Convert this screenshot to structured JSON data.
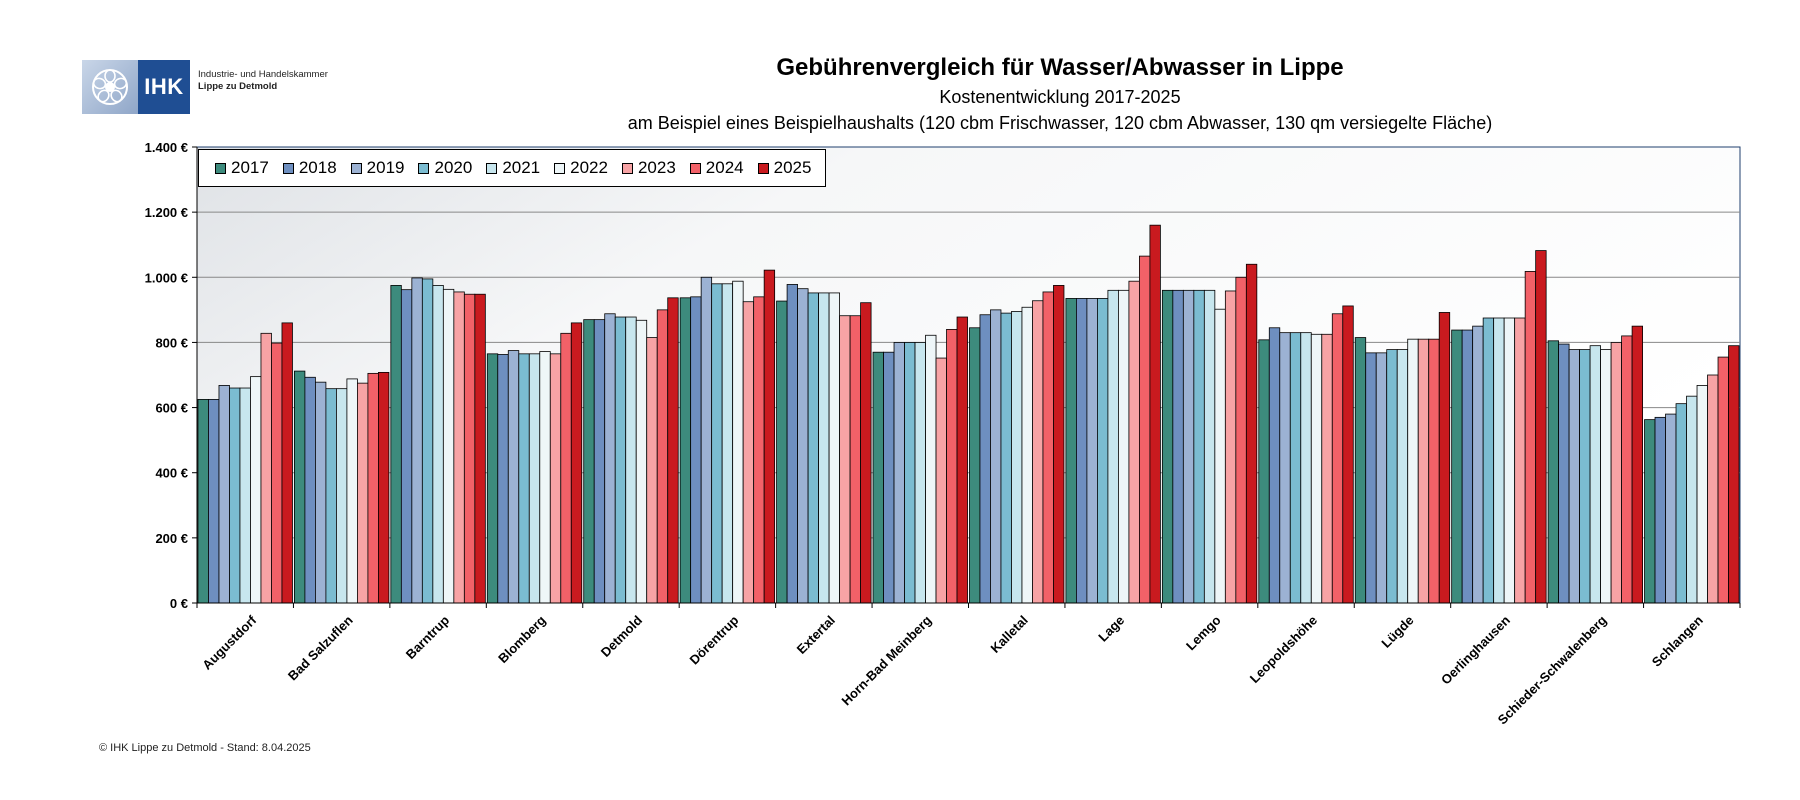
{
  "logo": {
    "ihk_text": "IHK",
    "line1": "Industrie- und Handelskammer",
    "line2": "Lippe zu Detmold"
  },
  "footer": "© IHK Lippe zu Detmold - Stand: 8.04.2025",
  "chart_data": {
    "type": "bar",
    "title": "Gebührenvergleich für Wasser/Abwasser in Lippe",
    "subtitle": "Kostenentwicklung 2017-2025",
    "subtitle2": "am Beispiel eines Beispielhaushalts (120 cbm Frischwasser, 120 cbm Abwasser, 130 qm versiegelte Fläche)",
    "xlabel": "",
    "ylabel": "",
    "ylim": [
      0,
      1400
    ],
    "yticks": [
      0,
      200,
      400,
      600,
      800,
      1000,
      1200,
      1400
    ],
    "ytick_labels": [
      "0 €",
      "200 €",
      "400 €",
      "600 €",
      "800 €",
      "1.000 €",
      "1.200 €",
      "1.400 €"
    ],
    "grid": true,
    "legend_position": "top-left",
    "categories": [
      "Augustdorf",
      "Bad Salzuflen",
      "Barntrup",
      "Blomberg",
      "Detmold",
      "Dörentrup",
      "Extertal",
      "Horn-Bad Meinberg",
      "Kalletal",
      "Lage",
      "Lemgo",
      "Leopoldshöhe",
      "Lügde",
      "Oerlinghausen",
      "Schieder-Schwalenberg",
      "Schlangen"
    ],
    "series": [
      {
        "name": "2017",
        "color": "#3d8b7d",
        "values": [
          625,
          712,
          975,
          765,
          870,
          937,
          927,
          770,
          845,
          935,
          960,
          808,
          815,
          838,
          805,
          563
        ]
      },
      {
        "name": "2018",
        "color": "#6e8fc0",
        "values": [
          625,
          693,
          962,
          763,
          870,
          940,
          978,
          770,
          885,
          935,
          960,
          845,
          768,
          838,
          795,
          570
        ]
      },
      {
        "name": "2019",
        "color": "#9cb2d3",
        "values": [
          668,
          678,
          998,
          775,
          888,
          1000,
          965,
          800,
          900,
          935,
          960,
          830,
          768,
          850,
          778,
          580
        ]
      },
      {
        "name": "2020",
        "color": "#7bbcd1",
        "values": [
          660,
          658,
          995,
          765,
          878,
          980,
          952,
          800,
          890,
          935,
          960,
          830,
          778,
          875,
          778,
          612
        ]
      },
      {
        "name": "2021",
        "color": "#c7e6ee",
        "values": [
          660,
          658,
          975,
          765,
          878,
          980,
          952,
          800,
          895,
          960,
          960,
          830,
          778,
          875,
          790,
          635
        ]
      },
      {
        "name": "2022",
        "color": "#eef6f8",
        "values": [
          695,
          688,
          963,
          772,
          868,
          988,
          952,
          822,
          908,
          960,
          902,
          825,
          810,
          875,
          778,
          668
        ]
      },
      {
        "name": "2023",
        "color": "#f7a3a5",
        "values": [
          828,
          675,
          955,
          765,
          815,
          925,
          882,
          752,
          928,
          988,
          958,
          825,
          810,
          875,
          800,
          700
        ]
      },
      {
        "name": "2024",
        "color": "#f26168",
        "values": [
          798,
          705,
          948,
          828,
          900,
          940,
          882,
          840,
          955,
          1065,
          1000,
          888,
          810,
          1018,
          820,
          755
        ]
      },
      {
        "name": "2025",
        "color": "#c91a1f",
        "values": [
          860,
          708,
          948,
          860,
          937,
          1022,
          922,
          878,
          975,
          1160,
          1040,
          912,
          892,
          1082,
          850,
          790
        ]
      }
    ]
  }
}
